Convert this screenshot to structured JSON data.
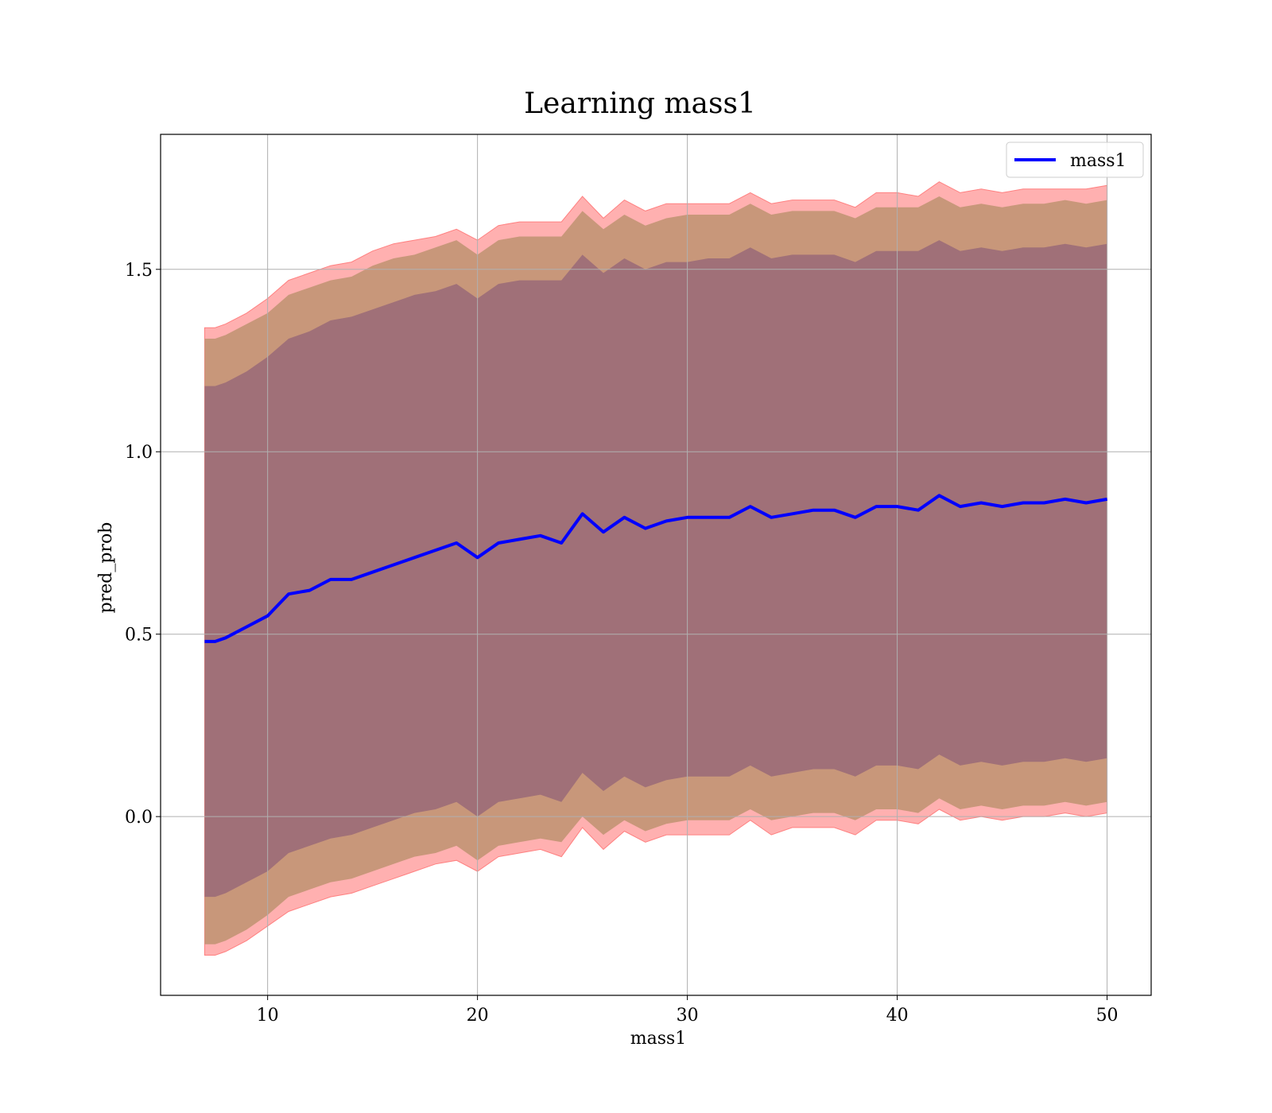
{
  "chart_data": {
    "type": "area",
    "title": "Learning mass1",
    "xlabel": "mass1",
    "ylabel": "pred_prob",
    "xlim": [
      4.9,
      52.1
    ],
    "ylim": [
      -0.49,
      1.87
    ],
    "xticks": [
      10,
      20,
      30,
      40,
      50
    ],
    "xtick_labels": [
      "10",
      "20",
      "30",
      "40",
      "50"
    ],
    "yticks": [
      0.0,
      0.5,
      1.0,
      1.5
    ],
    "ytick_labels": [
      "0.0",
      "0.5",
      "1.0",
      "1.5"
    ],
    "grid": true,
    "legend": {
      "position": "top-right",
      "entries": [
        "mass1"
      ]
    },
    "colors": {
      "line": "#0000ff",
      "band_outer": "#ffb0b0",
      "band_outer_edge": "#ff8080",
      "band_middle": "#c8977a",
      "band_inner": "#a07078",
      "grid": "#b0b0b0"
    },
    "x": [
      7,
      7.5,
      8,
      9,
      10,
      11,
      12,
      13,
      14,
      15,
      16,
      17,
      18,
      19,
      20,
      21,
      22,
      23,
      24,
      25,
      26,
      27,
      28,
      29,
      30,
      31,
      32,
      33,
      34,
      35,
      36,
      37,
      38,
      39,
      40,
      41,
      42,
      43,
      44,
      45,
      46,
      47,
      48,
      49,
      50
    ],
    "series": [
      {
        "name": "mass1",
        "values": [
          0.48,
          0.48,
          0.49,
          0.52,
          0.55,
          0.61,
          0.62,
          0.65,
          0.65,
          0.67,
          0.69,
          0.71,
          0.73,
          0.75,
          0.71,
          0.75,
          0.76,
          0.77,
          0.75,
          0.83,
          0.78,
          0.82,
          0.79,
          0.81,
          0.82,
          0.82,
          0.82,
          0.85,
          0.82,
          0.83,
          0.84,
          0.84,
          0.82,
          0.85,
          0.85,
          0.84,
          0.88,
          0.85,
          0.86,
          0.85,
          0.86,
          0.86,
          0.87,
          0.86,
          0.87
        ]
      }
    ],
    "bands": [
      {
        "level": "outer",
        "upper": [
          1.34,
          1.34,
          1.35,
          1.38,
          1.42,
          1.47,
          1.49,
          1.51,
          1.52,
          1.55,
          1.57,
          1.58,
          1.59,
          1.61,
          1.58,
          1.62,
          1.63,
          1.63,
          1.63,
          1.7,
          1.64,
          1.69,
          1.66,
          1.68,
          1.68,
          1.68,
          1.68,
          1.71,
          1.68,
          1.69,
          1.69,
          1.69,
          1.67,
          1.71,
          1.71,
          1.7,
          1.74,
          1.71,
          1.72,
          1.71,
          1.72,
          1.72,
          1.72,
          1.72,
          1.73
        ],
        "lower": [
          -0.38,
          -0.38,
          -0.37,
          -0.34,
          -0.3,
          -0.26,
          -0.24,
          -0.22,
          -0.21,
          -0.19,
          -0.17,
          -0.15,
          -0.13,
          -0.12,
          -0.15,
          -0.11,
          -0.1,
          -0.09,
          -0.11,
          -0.03,
          -0.09,
          -0.04,
          -0.07,
          -0.05,
          -0.05,
          -0.05,
          -0.05,
          -0.01,
          -0.05,
          -0.03,
          -0.03,
          -0.03,
          -0.05,
          -0.01,
          -0.01,
          -0.02,
          0.02,
          -0.01,
          0.0,
          -0.01,
          0.0,
          0.0,
          0.01,
          0.0,
          0.01
        ]
      },
      {
        "level": "middle",
        "upper": [
          1.31,
          1.31,
          1.32,
          1.35,
          1.38,
          1.43,
          1.45,
          1.47,
          1.48,
          1.51,
          1.53,
          1.54,
          1.56,
          1.58,
          1.54,
          1.58,
          1.59,
          1.59,
          1.59,
          1.66,
          1.61,
          1.65,
          1.62,
          1.64,
          1.65,
          1.65,
          1.65,
          1.68,
          1.65,
          1.66,
          1.66,
          1.66,
          1.64,
          1.67,
          1.67,
          1.67,
          1.7,
          1.67,
          1.68,
          1.67,
          1.68,
          1.68,
          1.69,
          1.68,
          1.69
        ],
        "lower": [
          -0.35,
          -0.35,
          -0.34,
          -0.31,
          -0.27,
          -0.22,
          -0.2,
          -0.18,
          -0.17,
          -0.15,
          -0.13,
          -0.11,
          -0.1,
          -0.08,
          -0.12,
          -0.08,
          -0.07,
          -0.06,
          -0.07,
          0.0,
          -0.05,
          -0.01,
          -0.04,
          -0.02,
          -0.01,
          -0.01,
          -0.01,
          0.02,
          -0.01,
          0.0,
          0.01,
          0.01,
          -0.01,
          0.02,
          0.02,
          0.01,
          0.05,
          0.02,
          0.03,
          0.02,
          0.03,
          0.03,
          0.04,
          0.03,
          0.04
        ]
      },
      {
        "level": "inner",
        "upper": [
          1.18,
          1.18,
          1.19,
          1.22,
          1.26,
          1.31,
          1.33,
          1.36,
          1.37,
          1.39,
          1.41,
          1.43,
          1.44,
          1.46,
          1.42,
          1.46,
          1.47,
          1.47,
          1.47,
          1.54,
          1.49,
          1.53,
          1.5,
          1.52,
          1.52,
          1.53,
          1.53,
          1.56,
          1.53,
          1.54,
          1.54,
          1.54,
          1.52,
          1.55,
          1.55,
          1.55,
          1.58,
          1.55,
          1.56,
          1.55,
          1.56,
          1.56,
          1.57,
          1.56,
          1.57
        ],
        "lower": [
          -0.22,
          -0.22,
          -0.21,
          -0.18,
          -0.15,
          -0.1,
          -0.08,
          -0.06,
          -0.05,
          -0.03,
          -0.01,
          0.01,
          0.02,
          0.04,
          0.0,
          0.04,
          0.05,
          0.06,
          0.04,
          0.12,
          0.07,
          0.11,
          0.08,
          0.1,
          0.11,
          0.11,
          0.11,
          0.14,
          0.11,
          0.12,
          0.13,
          0.13,
          0.11,
          0.14,
          0.14,
          0.13,
          0.17,
          0.14,
          0.15,
          0.14,
          0.15,
          0.15,
          0.16,
          0.15,
          0.16
        ]
      }
    ]
  }
}
